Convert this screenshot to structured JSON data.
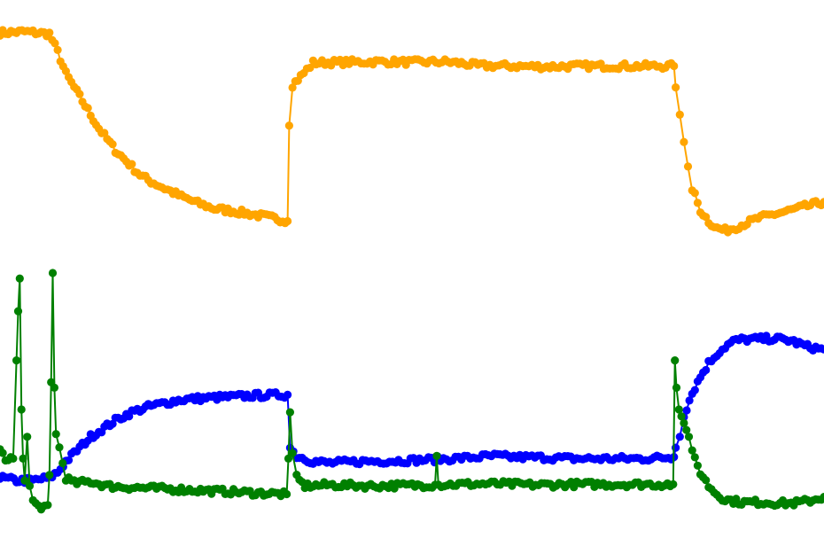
{
  "chart_data": {
    "type": "line",
    "title": "",
    "xlabel": "",
    "ylabel": "",
    "grid": false,
    "legend": "none",
    "axes_visible": false,
    "xlim": [
      0,
      100
    ],
    "ylim": [
      0,
      100
    ],
    "markers": "circle",
    "series": [
      {
        "color": "#FFA500",
        "points": [
          [
            0,
            94.0
          ],
          [
            3,
            94.2
          ],
          [
            6,
            93.8
          ],
          [
            7,
            90.5
          ],
          [
            8,
            86.5
          ],
          [
            9,
            84.0
          ],
          [
            10,
            81.5
          ],
          [
            11,
            79.0
          ],
          [
            12,
            76.5
          ],
          [
            13,
            74.5
          ],
          [
            14,
            72.5
          ],
          [
            15,
            71.0
          ],
          [
            16,
            69.5
          ],
          [
            17,
            68.0
          ],
          [
            18,
            67.0
          ],
          [
            20,
            65.5
          ],
          [
            22,
            64.0
          ],
          [
            24,
            62.8
          ],
          [
            26,
            61.8
          ],
          [
            28,
            61.4
          ],
          [
            30,
            60.9
          ],
          [
            32,
            60.4
          ],
          [
            34,
            59.8
          ],
          [
            34.9,
            59.5
          ],
          [
            35.1,
            77.0
          ],
          [
            35.5,
            84.5
          ],
          [
            36.5,
            86.0
          ],
          [
            38,
            88.5
          ],
          [
            42,
            88.6
          ],
          [
            46,
            88.7
          ],
          [
            50,
            88.6
          ],
          [
            54,
            88.7
          ],
          [
            56,
            88.4
          ],
          [
            58,
            88.0
          ],
          [
            62,
            87.9
          ],
          [
            66,
            87.8
          ],
          [
            70,
            87.9
          ],
          [
            74,
            87.9
          ],
          [
            78,
            87.9
          ],
          [
            81.8,
            87.9
          ],
          [
            82,
            84.0
          ],
          [
            82.5,
            79.0
          ],
          [
            83,
            74.0
          ],
          [
            83.5,
            69.5
          ],
          [
            84,
            65.5
          ],
          [
            85,
            61.5
          ],
          [
            86,
            59.5
          ],
          [
            87,
            58.2
          ],
          [
            88,
            57.8
          ],
          [
            89,
            58.2
          ],
          [
            90,
            58.8
          ],
          [
            92,
            60.0
          ],
          [
            94,
            60.8
          ],
          [
            96,
            61.5
          ],
          [
            98,
            62.3
          ],
          [
            100,
            63.0
          ]
        ]
      },
      {
        "color": "#0000FF",
        "points": [
          [
            0,
            12.5
          ],
          [
            2,
            12.0
          ],
          [
            4,
            12.0
          ],
          [
            6,
            12.5
          ],
          [
            7,
            13.5
          ],
          [
            8,
            15.5
          ],
          [
            9,
            17.0
          ],
          [
            10,
            18.5
          ],
          [
            11,
            20.0
          ],
          [
            12,
            21.0
          ],
          [
            13,
            22.0
          ],
          [
            14,
            23.0
          ],
          [
            15,
            23.8
          ],
          [
            16,
            24.5
          ],
          [
            18,
            25.5
          ],
          [
            20,
            26.2
          ],
          [
            22,
            26.8
          ],
          [
            24,
            27.0
          ],
          [
            26,
            27.2
          ],
          [
            28,
            27.3
          ],
          [
            30,
            27.5
          ],
          [
            32,
            27.6
          ],
          [
            34.9,
            27.7
          ],
          [
            35.2,
            18.0
          ],
          [
            36,
            16.5
          ],
          [
            38,
            15.5
          ],
          [
            40,
            15.2
          ],
          [
            44,
            15.5
          ],
          [
            48,
            15.6
          ],
          [
            52,
            15.8
          ],
          [
            56,
            16.1
          ],
          [
            60,
            16.5
          ],
          [
            62,
            16.3
          ],
          [
            66,
            16.2
          ],
          [
            70,
            16.0
          ],
          [
            74,
            16.0
          ],
          [
            78,
            16.0
          ],
          [
            81.8,
            16.3
          ],
          [
            82,
            18.0
          ],
          [
            82.5,
            20.0
          ],
          [
            83,
            24.0
          ],
          [
            84,
            28.0
          ],
          [
            85,
            31.0
          ],
          [
            86,
            33.5
          ],
          [
            87,
            35.2
          ],
          [
            88,
            36.5
          ],
          [
            89,
            37.5
          ],
          [
            90,
            37.8
          ],
          [
            92,
            37.9
          ],
          [
            94,
            38.0
          ],
          [
            96,
            37.6
          ],
          [
            98,
            36.5
          ],
          [
            100,
            36.0
          ]
        ]
      },
      {
        "color": "#008000",
        "points": [
          [
            0,
            17.5
          ],
          [
            1,
            15.5
          ],
          [
            1.6,
            16.0
          ],
          [
            2.0,
            34.0
          ],
          [
            2.2,
            43.0
          ],
          [
            2.4,
            49.0
          ],
          [
            2.6,
            25.0
          ],
          [
            2.8,
            16.0
          ],
          [
            3.0,
            12.0
          ],
          [
            3.3,
            20.0
          ],
          [
            3.6,
            11.0
          ],
          [
            4.0,
            8.0
          ],
          [
            5.0,
            7.0
          ],
          [
            5.8,
            7.5
          ],
          [
            6.0,
            13.0
          ],
          [
            6.2,
            30.0
          ],
          [
            6.4,
            50.0
          ],
          [
            6.6,
            29.0
          ],
          [
            6.8,
            20.5
          ],
          [
            7.2,
            18.0
          ],
          [
            8,
            12.5
          ],
          [
            9,
            11.5
          ],
          [
            11,
            11.8
          ],
          [
            13,
            11.0
          ],
          [
            15,
            10.8
          ],
          [
            18,
            10.6
          ],
          [
            21,
            10.4
          ],
          [
            24,
            10.2
          ],
          [
            27,
            10.0
          ],
          [
            30,
            9.8
          ],
          [
            33,
            9.6
          ],
          [
            34.8,
            9.5
          ],
          [
            35.0,
            16.0
          ],
          [
            35.2,
            24.5
          ],
          [
            35.5,
            17.0
          ],
          [
            36,
            12.5
          ],
          [
            37,
            11.0
          ],
          [
            40,
            11.2
          ],
          [
            45,
            11.0
          ],
          [
            50,
            11.1
          ],
          [
            52.8,
            11.2
          ],
          [
            53,
            16.5
          ],
          [
            53.2,
            11.2
          ],
          [
            55,
            11.3
          ],
          [
            60,
            11.4
          ],
          [
            65,
            11.2
          ],
          [
            70,
            11.3
          ],
          [
            75,
            11.3
          ],
          [
            81.7,
            11.3
          ],
          [
            81.9,
            34.0
          ],
          [
            82.1,
            29.0
          ],
          [
            82.4,
            25.0
          ],
          [
            83,
            22.5
          ],
          [
            83.6,
            20.0
          ],
          [
            84,
            17.0
          ],
          [
            85,
            13.5
          ],
          [
            86,
            11.0
          ],
          [
            87,
            9.5
          ],
          [
            88,
            8.5
          ],
          [
            90,
            8.0
          ],
          [
            92,
            8.0
          ],
          [
            94,
            7.9
          ],
          [
            96,
            7.8
          ],
          [
            98,
            8.2
          ],
          [
            100,
            9.0
          ]
        ]
      }
    ]
  }
}
